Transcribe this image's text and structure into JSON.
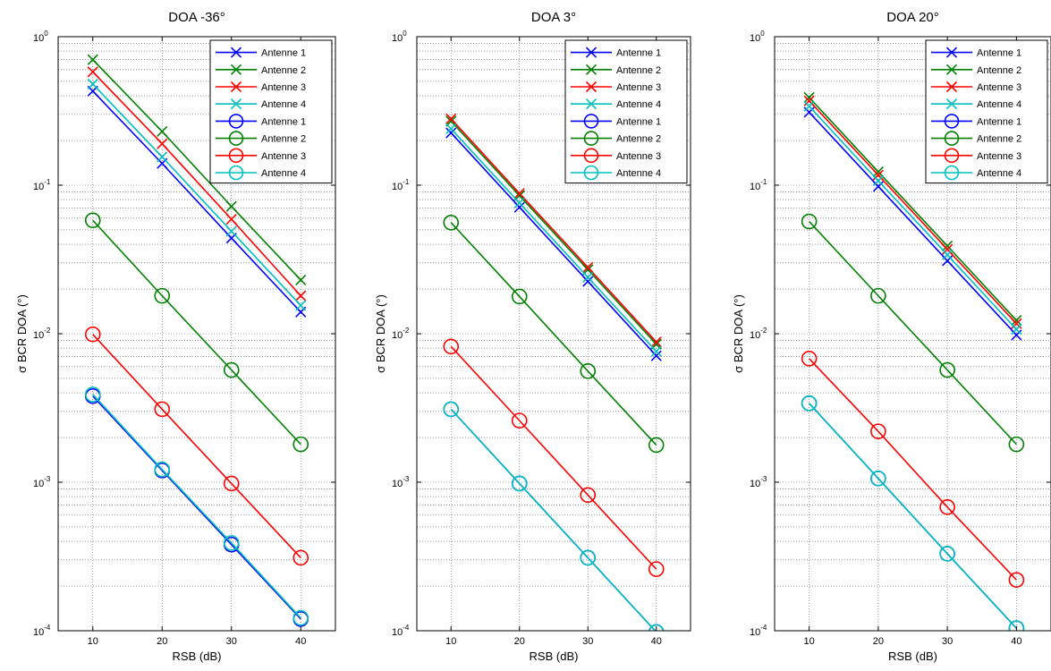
{
  "figure": {
    "panel_titles": [
      "DOA -36°",
      "DOA 3°",
      "DOA 20°"
    ],
    "xlabel": "RSB (dB)",
    "ylabel": "σ BCR DOA (°)"
  },
  "chart_data": [
    {
      "type": "line",
      "title": "DOA -36°",
      "xlabel": "RSB (dB)",
      "ylabel": "σ BCR DOA (°)",
      "yscale": "log",
      "xlim": [
        5,
        45
      ],
      "ylim": [
        0.0001,
        1
      ],
      "grid": true,
      "legend_position": "top-right",
      "x": [
        10,
        20,
        30,
        40
      ],
      "xticks": [
        10,
        20,
        30,
        40
      ],
      "yticks": [
        0.0001,
        0.001,
        0.01,
        0.1,
        1
      ],
      "series": [
        {
          "name": "Antenne 1",
          "marker": "x",
          "color": "#0000ff",
          "values": [
            0.43,
            0.14,
            0.044,
            0.014
          ]
        },
        {
          "name": "Antenne 2",
          "marker": "x",
          "color": "#008000",
          "values": [
            0.7,
            0.23,
            0.072,
            0.023
          ]
        },
        {
          "name": "Antenne 3",
          "marker": "x",
          "color": "#ff0000",
          "values": [
            0.58,
            0.19,
            0.059,
            0.018
          ]
        },
        {
          "name": "Antenne 4",
          "marker": "x",
          "color": "#00bfbf",
          "values": [
            0.48,
            0.155,
            0.049,
            0.0155
          ]
        },
        {
          "name": "Antenne 1",
          "marker": "o",
          "color": "#0000ff",
          "values": [
            0.0038,
            0.0012,
            0.00038,
            0.00012
          ]
        },
        {
          "name": "Antenne 2",
          "marker": "o",
          "color": "#008000",
          "values": [
            0.058,
            0.018,
            0.0057,
            0.0018
          ]
        },
        {
          "name": "Antenne 3",
          "marker": "o",
          "color": "#ff0000",
          "values": [
            0.0099,
            0.0031,
            0.00098,
            0.00031
          ]
        },
        {
          "name": "Antenne 4",
          "marker": "o",
          "color": "#00bfbf",
          "values": [
            0.0039,
            0.00122,
            0.00039,
            0.000122
          ]
        }
      ]
    },
    {
      "type": "line",
      "title": "DOA 3°",
      "xlabel": "RSB (dB)",
      "ylabel": "σ BCR DOA (°)",
      "yscale": "log",
      "xlim": [
        5,
        45
      ],
      "ylim": [
        0.0001,
        1
      ],
      "grid": true,
      "legend_position": "top-right",
      "x": [
        10,
        20,
        30,
        40
      ],
      "xticks": [
        10,
        20,
        30,
        40
      ],
      "yticks": [
        0.0001,
        0.001,
        0.01,
        0.1,
        1
      ],
      "series": [
        {
          "name": "Antenne 1",
          "marker": "x",
          "color": "#0000ff",
          "values": [
            0.225,
            0.071,
            0.0225,
            0.0071
          ]
        },
        {
          "name": "Antenne 2",
          "marker": "x",
          "color": "#008000",
          "values": [
            0.27,
            0.085,
            0.027,
            0.0085
          ]
        },
        {
          "name": "Antenne 3",
          "marker": "x",
          "color": "#ff0000",
          "values": [
            0.28,
            0.088,
            0.028,
            0.0088
          ]
        },
        {
          "name": "Antenne 4",
          "marker": "x",
          "color": "#00bfbf",
          "values": [
            0.24,
            0.076,
            0.024,
            0.0076
          ]
        },
        {
          "name": "Antenne 1",
          "marker": "o",
          "color": "#0000ff",
          "values": [
            0.0031,
            0.00098,
            0.00031,
            9.8e-05
          ]
        },
        {
          "name": "Antenne 2",
          "marker": "o",
          "color": "#008000",
          "values": [
            0.056,
            0.0178,
            0.0056,
            0.00178
          ]
        },
        {
          "name": "Antenne 3",
          "marker": "o",
          "color": "#ff0000",
          "values": [
            0.0082,
            0.0026,
            0.00082,
            0.00026
          ]
        },
        {
          "name": "Antenne 4",
          "marker": "o",
          "color": "#00bfbf",
          "values": [
            0.0031,
            0.00098,
            0.00031,
            9.8e-05
          ]
        }
      ]
    },
    {
      "type": "line",
      "title": "DOA 20°",
      "xlabel": "RSB (dB)",
      "ylabel": "σ BCR DOA (°)",
      "yscale": "log",
      "xlim": [
        5,
        45
      ],
      "ylim": [
        0.0001,
        1
      ],
      "grid": true,
      "legend_position": "top-right",
      "x": [
        10,
        20,
        30,
        40
      ],
      "xticks": [
        10,
        20,
        30,
        40
      ],
      "yticks": [
        0.0001,
        0.001,
        0.01,
        0.1,
        1
      ],
      "series": [
        {
          "name": "Antenne 1",
          "marker": "x",
          "color": "#0000ff",
          "values": [
            0.31,
            0.098,
            0.031,
            0.0098
          ]
        },
        {
          "name": "Antenne 2",
          "marker": "x",
          "color": "#008000",
          "values": [
            0.39,
            0.123,
            0.039,
            0.0123
          ]
        },
        {
          "name": "Antenne 3",
          "marker": "x",
          "color": "#ff0000",
          "values": [
            0.37,
            0.117,
            0.037,
            0.0117
          ]
        },
        {
          "name": "Antenne 4",
          "marker": "x",
          "color": "#00bfbf",
          "values": [
            0.34,
            0.107,
            0.034,
            0.0107
          ]
        },
        {
          "name": "Antenne 1",
          "marker": "o",
          "color": "#0000ff",
          "values": [
            0.0034,
            0.00106,
            0.00033,
            0.000104
          ]
        },
        {
          "name": "Antenne 2",
          "marker": "o",
          "color": "#008000",
          "values": [
            0.057,
            0.018,
            0.0057,
            0.0018
          ]
        },
        {
          "name": "Antenne 3",
          "marker": "o",
          "color": "#ff0000",
          "values": [
            0.0068,
            0.0022,
            0.00068,
            0.00022
          ]
        },
        {
          "name": "Antenne 4",
          "marker": "o",
          "color": "#00bfbf",
          "values": [
            0.0034,
            0.00106,
            0.00033,
            0.000104
          ]
        }
      ]
    }
  ]
}
